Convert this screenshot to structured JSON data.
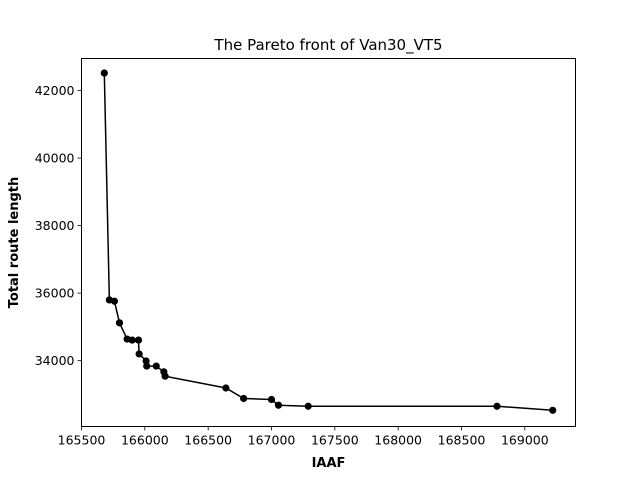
{
  "chart_data": {
    "type": "line",
    "title": "The Pareto front of Van30_VT5",
    "xlabel": "IAAF",
    "ylabel": "Total route length",
    "xlim": [
      165500,
      169400
    ],
    "ylim": [
      32050,
      42950
    ],
    "xticks": [
      165500,
      166000,
      166500,
      167000,
      167500,
      168000,
      168500,
      169000
    ],
    "yticks": [
      34000,
      36000,
      38000,
      40000,
      42000
    ],
    "xtick_labels": [
      "165500",
      "166000",
      "166500",
      "167000",
      "167500",
      "168000",
      "168500",
      "169000"
    ],
    "ytick_labels": [
      "34000",
      "36000",
      "38000",
      "40000",
      "42000"
    ],
    "grid": false,
    "legend": "none",
    "colors": {
      "line": "#000000",
      "marker": "#000000"
    },
    "series": [
      {
        "marker": "circle",
        "x": [
          165680,
          165720,
          165760,
          165800,
          165860,
          165900,
          165950,
          165955,
          166010,
          166015,
          166090,
          166150,
          166160,
          166640,
          166780,
          167000,
          167055,
          167290,
          168780,
          169220
        ],
        "y": [
          42520,
          35800,
          35760,
          35120,
          34640,
          34610,
          34610,
          34200,
          33990,
          33840,
          33840,
          33670,
          33540,
          33190,
          32880,
          32850,
          32680,
          32650,
          32650,
          32530
        ]
      }
    ]
  }
}
